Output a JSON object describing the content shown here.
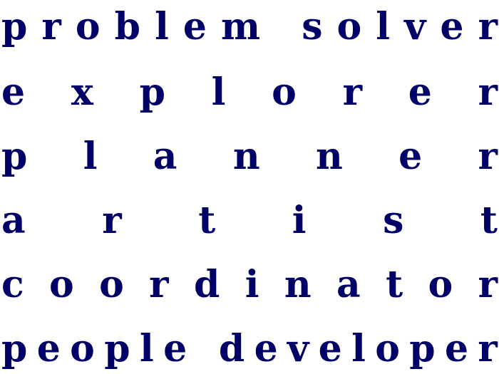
{
  "lines": [
    "problem solver",
    "explorer",
    "planner",
    "artist",
    "coordinator",
    "people developer"
  ],
  "colors": {
    "text": "#000066",
    "background": "#ffffff"
  }
}
